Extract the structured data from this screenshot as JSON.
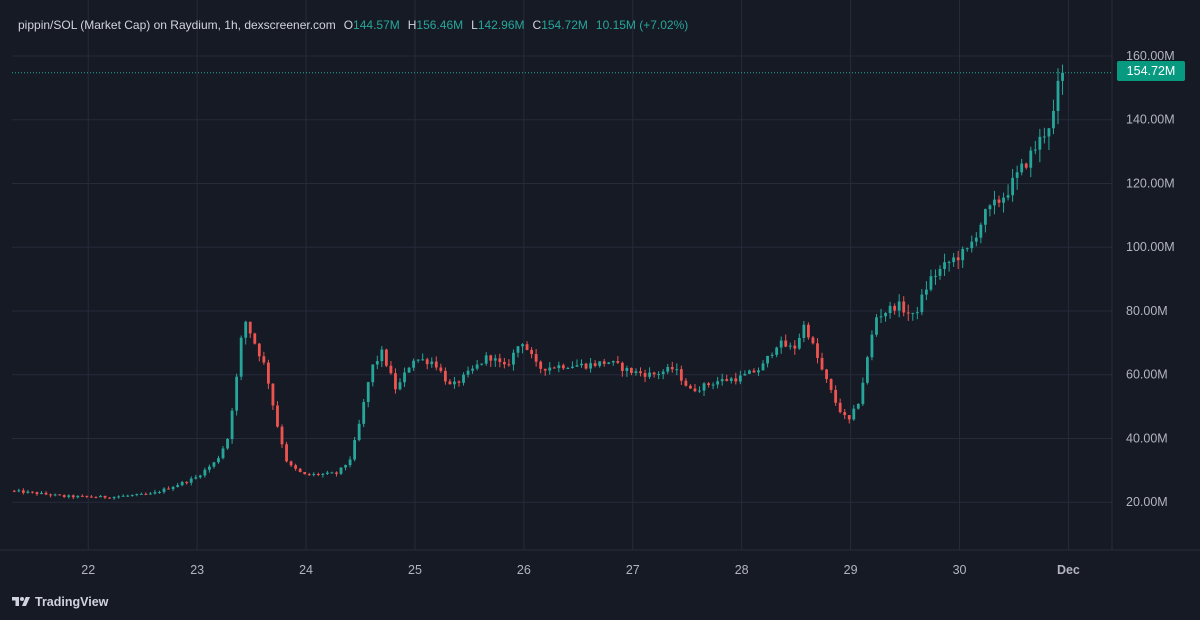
{
  "header": {
    "symbol": "pippin/SOL (Market Cap) on Raydium, 1h, dexscreener.com",
    "open_label": "O",
    "open": "144.57M",
    "high_label": "H",
    "high": "156.46M",
    "low_label": "L",
    "low": "142.96M",
    "close_label": "C",
    "close": "154.72M",
    "change": "10.15M (+7.02%)"
  },
  "last_price_label": "154.72M",
  "branding": "TradingView",
  "colors": {
    "background": "#161a25",
    "grid": "#262b3a",
    "up": "#26a69a",
    "down": "#ef5350",
    "axis_text": "#b2b5be",
    "price_badge": "#089981"
  },
  "chart_data": {
    "type": "candlestick",
    "interval": "1h",
    "y_unit": "market cap (USD)",
    "ylim": [
      5,
      165
    ],
    "y_ticks": [
      20,
      40,
      60,
      80,
      100,
      120,
      140,
      160
    ],
    "y_tick_labels": [
      "20.00M",
      "40.00M",
      "60.00M",
      "80.00M",
      "100.00M",
      "120.00M",
      "140.00M",
      "160.00M"
    ],
    "x_tick_labels": [
      "22",
      "23",
      "24",
      "25",
      "26",
      "27",
      "28",
      "29",
      "30",
      "Dec"
    ],
    "x_tick_days": [
      22,
      23,
      24,
      25,
      26,
      27,
      28,
      29,
      30,
      31
    ],
    "x_range_days": [
      21.3,
      31.4
    ],
    "last_price": 154.72,
    "grid": true,
    "candles_per_day": 24,
    "start_day": 21.3,
    "keypoints": [
      [
        21.3,
        23.6
      ],
      [
        21.6,
        22.6
      ],
      [
        21.8,
        21.8
      ],
      [
        22.2,
        21.6
      ],
      [
        22.6,
        22.5
      ],
      [
        22.8,
        25.0
      ],
      [
        23.0,
        27.5
      ],
      [
        23.2,
        33.0
      ],
      [
        23.3,
        40.0
      ],
      [
        23.38,
        58.0
      ],
      [
        23.45,
        78.0
      ],
      [
        23.55,
        70.0
      ],
      [
        23.65,
        62.0
      ],
      [
        23.75,
        45.0
      ],
      [
        23.85,
        32.0
      ],
      [
        24.0,
        28.5
      ],
      [
        24.3,
        29.0
      ],
      [
        24.42,
        33.0
      ],
      [
        24.5,
        43.0
      ],
      [
        24.62,
        62.0
      ],
      [
        24.72,
        67.0
      ],
      [
        24.85,
        55.0
      ],
      [
        25.0,
        65.0
      ],
      [
        25.2,
        64.0
      ],
      [
        25.35,
        56.0
      ],
      [
        25.5,
        60.0
      ],
      [
        25.7,
        66.0
      ],
      [
        25.85,
        62.0
      ],
      [
        26.0,
        71.0
      ],
      [
        26.15,
        62.0
      ],
      [
        26.4,
        63.0
      ],
      [
        26.6,
        63.0
      ],
      [
        26.8,
        64.0
      ],
      [
        27.0,
        61.0
      ],
      [
        27.2,
        60.0
      ],
      [
        27.4,
        62.0
      ],
      [
        27.55,
        55.0
      ],
      [
        27.8,
        58.0
      ],
      [
        28.0,
        59.0
      ],
      [
        28.2,
        62.0
      ],
      [
        28.35,
        70.0
      ],
      [
        28.5,
        68.0
      ],
      [
        28.6,
        76.0
      ],
      [
        28.75,
        62.0
      ],
      [
        28.9,
        50.0
      ],
      [
        29.0,
        45.0
      ],
      [
        29.1,
        52.0
      ],
      [
        29.25,
        78.0
      ],
      [
        29.45,
        82.0
      ],
      [
        29.6,
        78.0
      ],
      [
        29.75,
        90.0
      ],
      [
        29.95,
        96.0
      ],
      [
        30.1,
        99.0
      ],
      [
        30.25,
        110.0
      ],
      [
        30.45,
        117.0
      ],
      [
        30.6,
        125.0
      ],
      [
        30.75,
        133.0
      ],
      [
        30.88,
        141.0
      ],
      [
        30.95,
        155.0
      ]
    ]
  }
}
